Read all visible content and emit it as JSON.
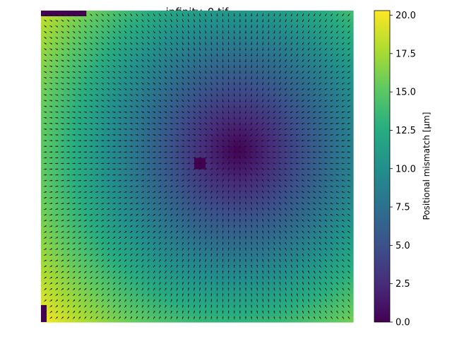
{
  "chart_data": {
    "type": "heatmap",
    "title": "infinity_0.tif",
    "colorbar": {
      "label": "Positional mismatch [µm]",
      "range": [
        0.0,
        20.3
      ],
      "ticks": [
        0.0,
        2.5,
        5.0,
        7.5,
        10.0,
        12.5,
        15.0,
        17.5,
        20.0
      ],
      "tick_labels": [
        "0.0",
        "2.5",
        "5.0",
        "7.5",
        "10.0",
        "12.5",
        "15.0",
        "17.5",
        "20.0"
      ],
      "colormap": "viridis"
    },
    "field": {
      "grid_columns": 55,
      "grid_rows": 55,
      "minimum_at_fraction": [
        0.63,
        0.45
      ],
      "max_value": 20.3,
      "vector_overlay": "arrows point radially toward the mismatch minimum"
    },
    "masked_regions": [
      {
        "name": "top-left strip",
        "col_range": [
          0,
          8
        ],
        "row_range": [
          0,
          1
        ]
      },
      {
        "name": "center block",
        "col_range": [
          27,
          29
        ],
        "row_range": [
          26,
          28
        ]
      },
      {
        "name": "bottom-left strip",
        "col_range": [
          0,
          1
        ],
        "row_range": [
          52,
          55
        ]
      }
    ],
    "colors": {
      "masked": "#440154",
      "arrow": "#111111"
    }
  }
}
